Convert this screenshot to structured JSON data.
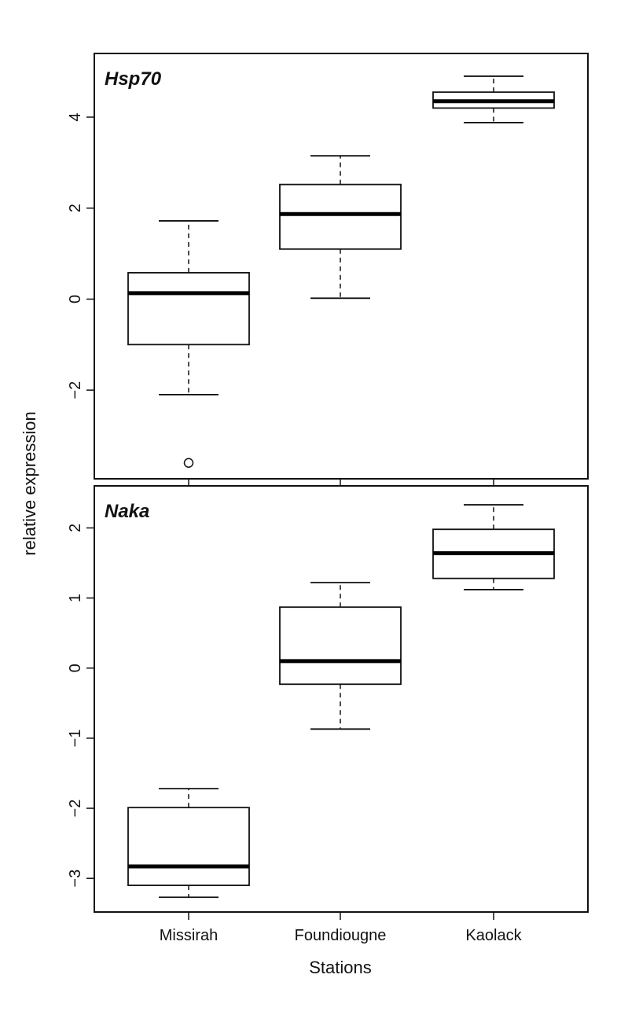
{
  "chart_data": {
    "type": "boxplot",
    "ylabel": "relative expression",
    "xlabel": "Stations",
    "categories": [
      "Missirah",
      "Foundiougne",
      "Kaolack"
    ],
    "panels": [
      {
        "title": "Hsp70",
        "ylim": [
          -3.95,
          5.4
        ],
        "yticks": [
          -2,
          0,
          2,
          4
        ],
        "boxes": [
          {
            "station": "Missirah",
            "whisker_low": -2.1,
            "q1": -1.0,
            "median": 0.13,
            "q3": 0.58,
            "whisker_high": 1.72,
            "outliers": [
              -3.6
            ]
          },
          {
            "station": "Foundiougne",
            "whisker_low": 0.02,
            "q1": 1.1,
            "median": 1.87,
            "q3": 2.52,
            "whisker_high": 3.15,
            "outliers": []
          },
          {
            "station": "Kaolack",
            "whisker_low": 3.88,
            "q1": 4.2,
            "median": 4.35,
            "q3": 4.55,
            "whisker_high": 4.9,
            "outliers": []
          }
        ]
      },
      {
        "title": "Naka",
        "ylim": [
          -3.48,
          2.6
        ],
        "yticks": [
          -3,
          -2,
          -1,
          0,
          1,
          2
        ],
        "boxes": [
          {
            "station": "Missirah",
            "whisker_low": -3.27,
            "q1": -3.1,
            "median": -2.83,
            "q3": -1.99,
            "whisker_high": -1.72,
            "outliers": []
          },
          {
            "station": "Foundiougne",
            "whisker_low": -0.87,
            "q1": -0.23,
            "median": 0.1,
            "q3": 0.87,
            "whisker_high": 1.22,
            "outliers": []
          },
          {
            "station": "Kaolack",
            "whisker_low": 1.12,
            "q1": 1.28,
            "median": 1.64,
            "q3": 1.98,
            "whisker_high": 2.33,
            "outliers": []
          }
        ]
      }
    ]
  }
}
